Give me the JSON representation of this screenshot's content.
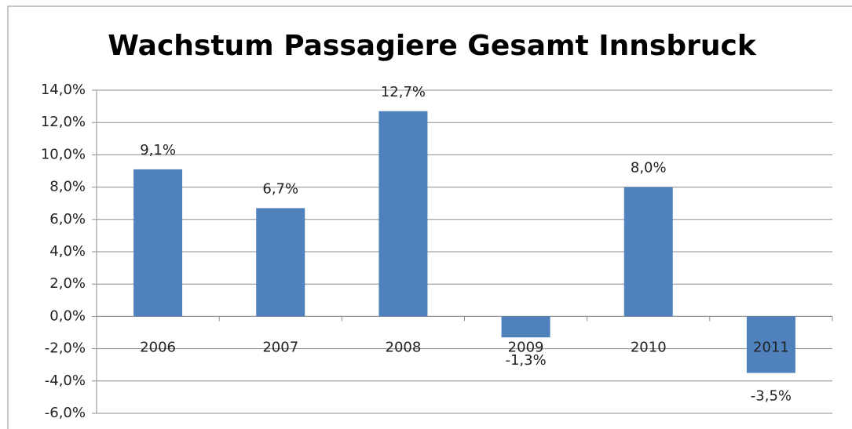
{
  "chart_data": {
    "type": "bar",
    "title": "Wachstum Passagiere Gesamt Innsbruck",
    "categories": [
      "2006",
      "2007",
      "2008",
      "2009",
      "2010",
      "2011"
    ],
    "values": [
      9.1,
      6.7,
      12.7,
      -1.3,
      8.0,
      -3.5
    ],
    "value_labels": [
      "9,1%",
      "6,7%",
      "12,7%",
      "-1,3%",
      "8,0%",
      "-3,5%"
    ],
    "color": "#4f81bd",
    "ylim": [
      -6,
      14
    ],
    "yticks": [
      {
        "value": -6,
        "label": "-6,0%"
      },
      {
        "value": -4,
        "label": "-4,0%"
      },
      {
        "value": -2,
        "label": "-2,0%"
      },
      {
        "value": 0,
        "label": "0,0%"
      },
      {
        "value": 2,
        "label": "2,0%"
      },
      {
        "value": 4,
        "label": "4,0%"
      },
      {
        "value": 6,
        "label": "6,0%"
      },
      {
        "value": 8,
        "label": "8,0%"
      },
      {
        "value": 10,
        "label": "10,0%"
      },
      {
        "value": 12,
        "label": "12,0%"
      },
      {
        "value": 14,
        "label": "14,0%"
      }
    ],
    "grid": true
  }
}
